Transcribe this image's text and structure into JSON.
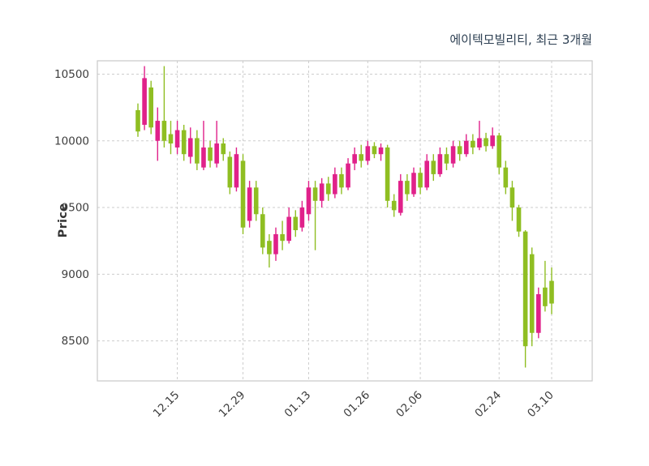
{
  "chart_data": {
    "type": "candlestick",
    "title": "에이텍모빌리티, 최근 3개월",
    "ylabel": "Price",
    "xlabel": "",
    "ylim": [
      8200,
      10600
    ],
    "y_ticks": [
      8500,
      9000,
      9500,
      10000,
      10500
    ],
    "x_tick_labels": [
      "12.15",
      "12.29",
      "01.13",
      "01.26",
      "02.06",
      "02.24",
      "03.10"
    ],
    "x_tick_indices": [
      6,
      16,
      26,
      35,
      43,
      55,
      63
    ],
    "grid": "dashed",
    "legend": "none",
    "colors": {
      "up": "#e0218a",
      "down": "#8fbe22",
      "grid": "#cdcdcd",
      "border": "#c9c9c9",
      "tick_text": "#3d3d3d",
      "title_text": "#2e4053",
      "background": "#ffffff"
    },
    "candles_format": [
      "open",
      "high",
      "low",
      "close"
    ],
    "candles": [
      [
        10230,
        10280,
        10030,
        10070
      ],
      [
        10120,
        10560,
        10080,
        10470
      ],
      [
        10400,
        10450,
        10050,
        10100
      ],
      [
        10000,
        10250,
        9850,
        10150
      ],
      [
        10150,
        10560,
        9950,
        10000
      ],
      [
        10050,
        10150,
        9900,
        9980
      ],
      [
        9950,
        10150,
        9900,
        10080
      ],
      [
        10080,
        10120,
        9850,
        9900
      ],
      [
        9880,
        10100,
        9830,
        10020
      ],
      [
        10020,
        10080,
        9780,
        9830
      ],
      [
        9800,
        10150,
        9780,
        9950
      ],
      [
        9950,
        10000,
        9800,
        9850
      ],
      [
        9830,
        10150,
        9800,
        9980
      ],
      [
        9980,
        10020,
        9850,
        9900
      ],
      [
        9880,
        9920,
        9600,
        9650
      ],
      [
        9650,
        9950,
        9620,
        9900
      ],
      [
        9850,
        9900,
        9300,
        9350
      ],
      [
        9400,
        9700,
        9350,
        9650
      ],
      [
        9650,
        9700,
        9400,
        9450
      ],
      [
        9450,
        9500,
        9150,
        9200
      ],
      [
        9250,
        9300,
        9050,
        9150
      ],
      [
        9150,
        9350,
        9100,
        9300
      ],
      [
        9300,
        9400,
        9180,
        9250
      ],
      [
        9250,
        9500,
        9230,
        9430
      ],
      [
        9430,
        9480,
        9280,
        9330
      ],
      [
        9350,
        9550,
        9320,
        9500
      ],
      [
        9450,
        9700,
        9400,
        9650
      ],
      [
        9650,
        9700,
        9180,
        9550
      ],
      [
        9550,
        9720,
        9500,
        9680
      ],
      [
        9680,
        9730,
        9550,
        9600
      ],
      [
        9600,
        9800,
        9570,
        9750
      ],
      [
        9750,
        9800,
        9600,
        9650
      ],
      [
        9650,
        9870,
        9630,
        9830
      ],
      [
        9830,
        9950,
        9780,
        9900
      ],
      [
        9900,
        9970,
        9800,
        9850
      ],
      [
        9850,
        10000,
        9820,
        9960
      ],
      [
        9960,
        9990,
        9870,
        9900
      ],
      [
        9900,
        9980,
        9850,
        9950
      ],
      [
        9950,
        9970,
        9500,
        9550
      ],
      [
        9550,
        9600,
        9430,
        9480
      ],
      [
        9460,
        9750,
        9440,
        9700
      ],
      [
        9700,
        9750,
        9550,
        9600
      ],
      [
        9600,
        9800,
        9580,
        9760
      ],
      [
        9760,
        9800,
        9600,
        9650
      ],
      [
        9650,
        9900,
        9630,
        9850
      ],
      [
        9850,
        9900,
        9700,
        9750
      ],
      [
        9750,
        9950,
        9730,
        9900
      ],
      [
        9900,
        9950,
        9780,
        9830
      ],
      [
        9830,
        10000,
        9800,
        9960
      ],
      [
        9960,
        10000,
        9850,
        9900
      ],
      [
        9900,
        10050,
        9880,
        10000
      ],
      [
        10000,
        10050,
        9900,
        9950
      ],
      [
        9950,
        10150,
        9930,
        10020
      ],
      [
        10020,
        10060,
        9920,
        9960
      ],
      [
        9960,
        10100,
        9940,
        10040
      ],
      [
        10040,
        10060,
        9750,
        9800
      ],
      [
        9800,
        9850,
        9600,
        9650
      ],
      [
        9650,
        9700,
        9400,
        9500
      ],
      [
        9500,
        9520,
        9280,
        9320
      ],
      [
        9320,
        9330,
        8300,
        8460
      ],
      [
        9150,
        9200,
        8460,
        8560
      ],
      [
        8560,
        8900,
        8520,
        8850
      ],
      [
        8900,
        9100,
        8720,
        8760
      ],
      [
        8950,
        9050,
        8700,
        8780
      ]
    ]
  }
}
